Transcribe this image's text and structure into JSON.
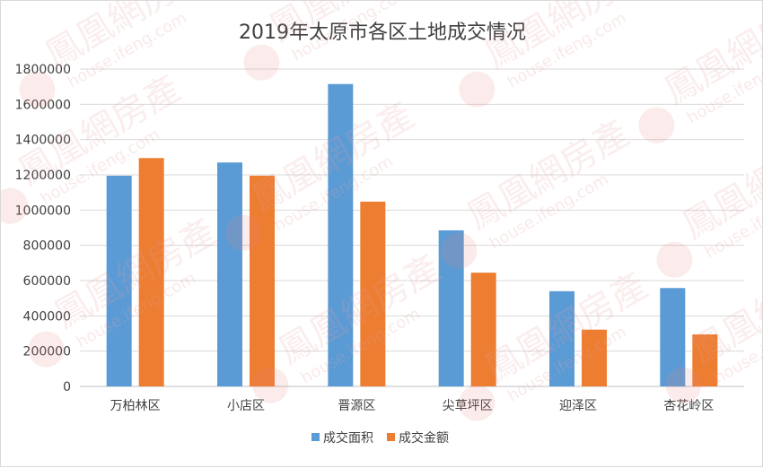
{
  "chart_data": {
    "type": "bar",
    "title": "2019年太原市各区土地成交情况",
    "categories": [
      "万柏林区",
      "小店区",
      "晋源区",
      "尖草坪区",
      "迎泽区",
      "杏花岭区"
    ],
    "series": [
      {
        "name": "成交面积",
        "color": "#5b9bd5",
        "values": [
          1195000,
          1270000,
          1715000,
          885000,
          540000,
          558000
        ]
      },
      {
        "name": "成交金额",
        "color": "#ed7d31",
        "values": [
          1295000,
          1195000,
          1048000,
          645000,
          322000,
          295000
        ]
      }
    ],
    "ylim": [
      0,
      1800000
    ],
    "yticks": [
      0,
      200000,
      400000,
      600000,
      800000,
      1000000,
      1200000,
      1400000,
      1600000,
      1800000
    ],
    "grid": true,
    "legend_position": "bottom"
  },
  "watermark": {
    "brand": "鳳凰網房產",
    "url": "house.ifeng.com"
  }
}
